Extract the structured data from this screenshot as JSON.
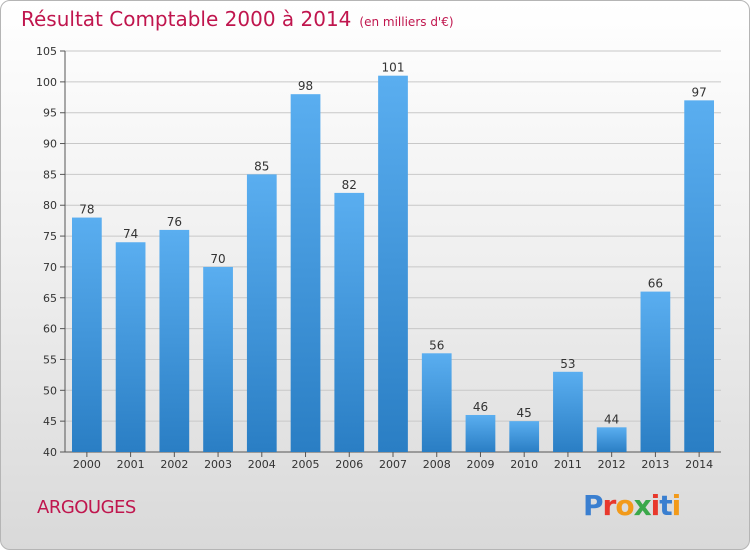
{
  "title": "Résultat Comptable 2000 à 2014",
  "title_unit": "(en milliers d'€)",
  "commune": "ARGOUGES",
  "logo": {
    "text": "Proxiti",
    "letter_colors": [
      "#3a7fd0",
      "#e8382c",
      "#f29a1a",
      "#3aa84a",
      "#e8382c",
      "#3a7fd0",
      "#f29a1a"
    ]
  },
  "colors": {
    "title": "#c0164e",
    "bar_top": "#5aaef0",
    "bar_bottom": "#2a7ec4"
  },
  "chart_data": {
    "type": "bar",
    "categories": [
      "2000",
      "2001",
      "2002",
      "2003",
      "2004",
      "2005",
      "2006",
      "2007",
      "2008",
      "2009",
      "2010",
      "2011",
      "2012",
      "2013",
      "2014"
    ],
    "values": [
      78,
      74,
      76,
      70,
      85,
      98,
      82,
      101,
      56,
      46,
      45,
      53,
      44,
      66,
      97
    ],
    "ylim": [
      40,
      105
    ],
    "yticks": [
      40,
      45,
      50,
      55,
      60,
      65,
      70,
      75,
      80,
      85,
      90,
      95,
      100,
      105
    ],
    "grid": true,
    "title": "Résultat Comptable 2000 à 2014",
    "xlabel": "",
    "ylabel": ""
  }
}
